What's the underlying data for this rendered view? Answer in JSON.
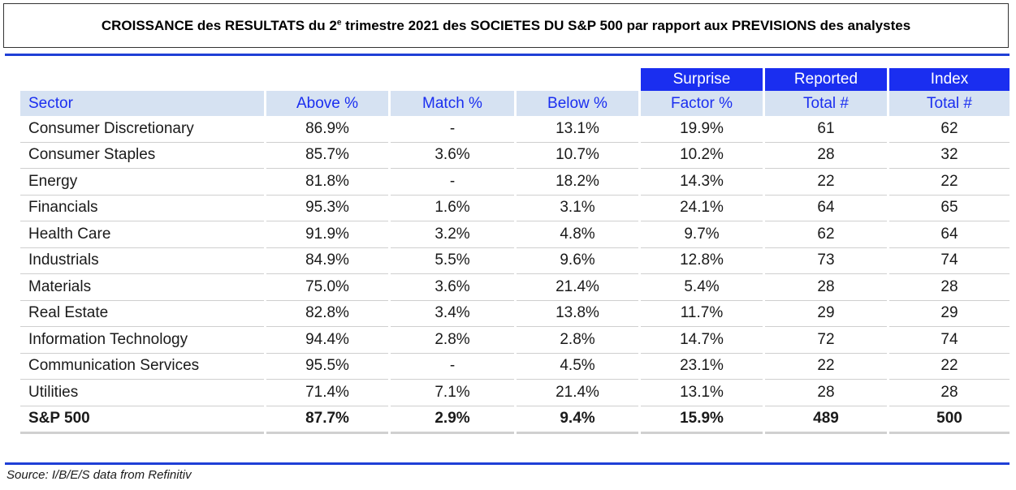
{
  "title": {
    "before": "CROISSANCE des RESULTATS du 2",
    "sup": "e",
    "after": " trimestre 2021 des SOCIETES DU S&P 500 par rapport   aux PREVISIONS des analystes"
  },
  "table": {
    "group_headers": [
      "Surprise",
      "Reported",
      "Index"
    ],
    "headers": [
      "Sector",
      "Above %",
      "Match %",
      "Below %",
      "Factor %",
      "Total #",
      "Total #"
    ],
    "rows": [
      [
        "Consumer Discretionary",
        "86.9%",
        "-",
        "13.1%",
        "19.9%",
        "61",
        "62"
      ],
      [
        "Consumer Staples",
        "85.7%",
        "3.6%",
        "10.7%",
        "10.2%",
        "28",
        "32"
      ],
      [
        "Energy",
        "81.8%",
        "-",
        "18.2%",
        "14.3%",
        "22",
        "22"
      ],
      [
        "Financials",
        "95.3%",
        "1.6%",
        "3.1%",
        "24.1%",
        "64",
        "65"
      ],
      [
        "Health Care",
        "91.9%",
        "3.2%",
        "4.8%",
        "9.7%",
        "62",
        "64"
      ],
      [
        "Industrials",
        "84.9%",
        "5.5%",
        "9.6%",
        "12.8%",
        "73",
        "74"
      ],
      [
        "Materials",
        "75.0%",
        "3.6%",
        "21.4%",
        "5.4%",
        "28",
        "28"
      ],
      [
        "Real Estate",
        "82.8%",
        "3.4%",
        "13.8%",
        "11.7%",
        "29",
        "29"
      ],
      [
        "Information Technology",
        "94.4%",
        "2.8%",
        "2.8%",
        "14.7%",
        "72",
        "74"
      ],
      [
        "Communication Services",
        "95.5%",
        "-",
        "4.5%",
        "23.1%",
        "22",
        "22"
      ],
      [
        "Utilities",
        "71.4%",
        "7.1%",
        "21.4%",
        "13.1%",
        "28",
        "28"
      ]
    ],
    "total_row": [
      "S&P 500",
      "87.7%",
      "2.9%",
      "9.4%",
      "15.9%",
      "489",
      "500"
    ]
  },
  "source": "Source: I/B/E/S data from Refinitiv",
  "colors": {
    "accent_blue": "#1a2ef0",
    "header_bg": "#d6e2f2",
    "rule": "#1f3fd6"
  }
}
